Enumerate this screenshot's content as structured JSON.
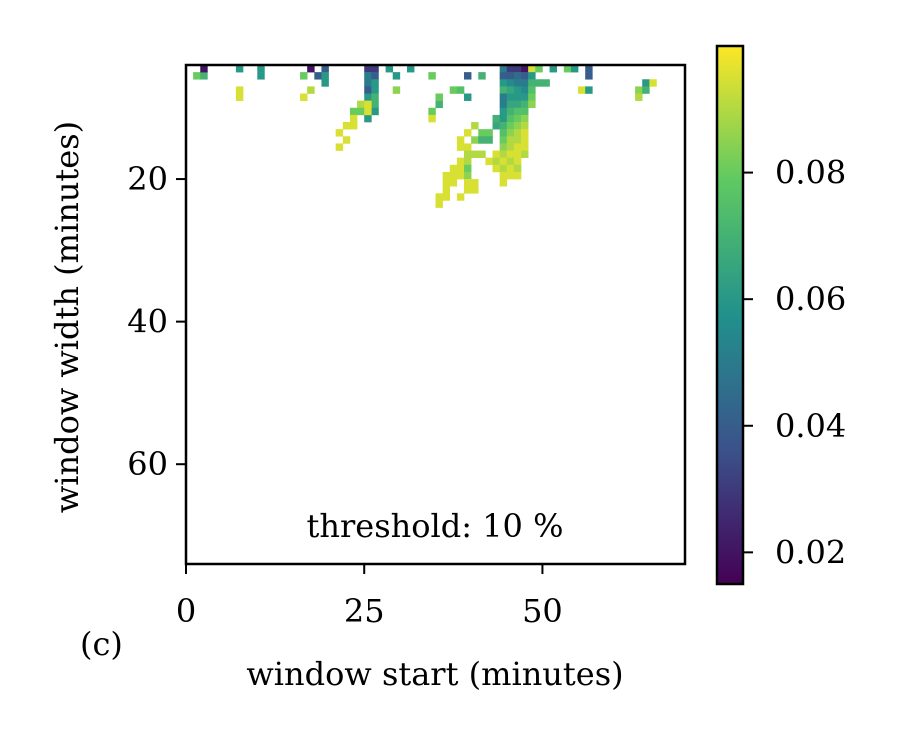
{
  "chart_data": {
    "type": "heatmap",
    "panel_label": "(c)",
    "xlabel": "window start (minutes)",
    "ylabel": "window width (minutes)",
    "annotation": "threshold: 10 %",
    "xlim": [
      0,
      70
    ],
    "ylim": [
      74,
      4
    ],
    "xticks": [
      0,
      25,
      50
    ],
    "yticks": [
      20,
      40,
      60
    ],
    "colorbar": {
      "colormap": "viridis",
      "range": [
        0.015,
        0.1
      ],
      "ticks": [
        "0.02",
        "0.04",
        "0.06",
        "0.08"
      ],
      "tick_values": [
        0.02,
        0.04,
        0.06,
        0.08
      ]
    },
    "colors": {
      "viridis": [
        "#440154",
        "#3b528b",
        "#21918c",
        "#5ec962",
        "#fde725"
      ]
    },
    "cells": [
      [
        1,
        5,
        0.08
      ],
      [
        2,
        5,
        0.07
      ],
      [
        2,
        4,
        0.02
      ],
      [
        7,
        4,
        0.06
      ],
      [
        10,
        4,
        0.06
      ],
      [
        10,
        5,
        0.06
      ],
      [
        7,
        7,
        0.095
      ],
      [
        7,
        8,
        0.095
      ],
      [
        16,
        5,
        0.08
      ],
      [
        17,
        4,
        0.02
      ],
      [
        18,
        5,
        0.04
      ],
      [
        19,
        4,
        0.04
      ],
      [
        17,
        7,
        0.09
      ],
      [
        16,
        8,
        0.095
      ],
      [
        19,
        6,
        0.06
      ],
      [
        19,
        5,
        0.06
      ],
      [
        22,
        12,
        0.095
      ],
      [
        21,
        13,
        0.095
      ],
      [
        21,
        15,
        0.095
      ],
      [
        22,
        14,
        0.095
      ],
      [
        23,
        10,
        0.08
      ],
      [
        23,
        11,
        0.095
      ],
      [
        23,
        12,
        0.095
      ],
      [
        24,
        9,
        0.09
      ],
      [
        24,
        10,
        0.08
      ],
      [
        25,
        4,
        0.03
      ],
      [
        25,
        5,
        0.05
      ],
      [
        25,
        6,
        0.05
      ],
      [
        25,
        7,
        0.04
      ],
      [
        25,
        8,
        0.06
      ],
      [
        25,
        11,
        0.06
      ],
      [
        26,
        4,
        0.03
      ],
      [
        26,
        5,
        0.04
      ],
      [
        26,
        6,
        0.06
      ],
      [
        26,
        7,
        0.06
      ],
      [
        26,
        8,
        0.07
      ],
      [
        26,
        9,
        0.07
      ],
      [
        26,
        10,
        0.06
      ],
      [
        25,
        9,
        0.095
      ],
      [
        25,
        10,
        0.095
      ],
      [
        28,
        4,
        0.06
      ],
      [
        29,
        5,
        0.06
      ],
      [
        29,
        7,
        0.085
      ],
      [
        31,
        4,
        0.06
      ],
      [
        34,
        5,
        0.08
      ],
      [
        34,
        10,
        0.08
      ],
      [
        34,
        11,
        0.095
      ],
      [
        35,
        9,
        0.07
      ],
      [
        35,
        8,
        0.08
      ],
      [
        37,
        7,
        0.08
      ],
      [
        38,
        7,
        0.075
      ],
      [
        39,
        5,
        0.04
      ],
      [
        39,
        8,
        0.06
      ],
      [
        41,
        5,
        0.07
      ],
      [
        39,
        13,
        0.095
      ],
      [
        40,
        12,
        0.09
      ],
      [
        40,
        14,
        0.085
      ],
      [
        41,
        13,
        0.08
      ],
      [
        41,
        14,
        0.07
      ],
      [
        42,
        13,
        0.08
      ],
      [
        42,
        14,
        0.07
      ],
      [
        43,
        12,
        0.065
      ],
      [
        43,
        11,
        0.07
      ],
      [
        38,
        14,
        0.095
      ],
      [
        38,
        15,
        0.095
      ],
      [
        39,
        15,
        0.095
      ],
      [
        40,
        16,
        0.09
      ],
      [
        41,
        16,
        0.09
      ],
      [
        39,
        16,
        0.09
      ],
      [
        38,
        17,
        0.095
      ],
      [
        39,
        17,
        0.09
      ],
      [
        37,
        18,
        0.095
      ],
      [
        38,
        18,
        0.095
      ],
      [
        39,
        18,
        0.08
      ],
      [
        36,
        19,
        0.095
      ],
      [
        37,
        19,
        0.095
      ],
      [
        38,
        19,
        0.095
      ],
      [
        39,
        19,
        0.085
      ],
      [
        36,
        20,
        0.095
      ],
      [
        37,
        20,
        0.095
      ],
      [
        39,
        20,
        0.095
      ],
      [
        40,
        20,
        0.095
      ],
      [
        36,
        21,
        0.095
      ],
      [
        39,
        21,
        0.095
      ],
      [
        40,
        21,
        0.095
      ],
      [
        35,
        22,
        0.095
      ],
      [
        36,
        22,
        0.095
      ],
      [
        38,
        22,
        0.095
      ],
      [
        35,
        23,
        0.095
      ],
      [
        42,
        17,
        0.095
      ],
      [
        43,
        16,
        0.095
      ],
      [
        43,
        17,
        0.09
      ],
      [
        43,
        18,
        0.095
      ],
      [
        44,
        4,
        0.05
      ],
      [
        44,
        5,
        0.04
      ],
      [
        44,
        6,
        0.06
      ],
      [
        44,
        7,
        0.07
      ],
      [
        44,
        8,
        0.05
      ],
      [
        44,
        9,
        0.05
      ],
      [
        44,
        10,
        0.06
      ],
      [
        44,
        11,
        0.06
      ],
      [
        44,
        12,
        0.07
      ],
      [
        44,
        13,
        0.075
      ],
      [
        44,
        14,
        0.08
      ],
      [
        44,
        15,
        0.085
      ],
      [
        44,
        16,
        0.09
      ],
      [
        44,
        17,
        0.095
      ],
      [
        44,
        18,
        0.09
      ],
      [
        44,
        19,
        0.095
      ],
      [
        44,
        20,
        0.095
      ],
      [
        45,
        4,
        0.03
      ],
      [
        45,
        5,
        0.04
      ],
      [
        45,
        6,
        0.055
      ],
      [
        45,
        7,
        0.065
      ],
      [
        45,
        8,
        0.06
      ],
      [
        45,
        9,
        0.065
      ],
      [
        45,
        10,
        0.07
      ],
      [
        45,
        11,
        0.075
      ],
      [
        45,
        12,
        0.08
      ],
      [
        45,
        13,
        0.085
      ],
      [
        45,
        14,
        0.09
      ],
      [
        45,
        15,
        0.09
      ],
      [
        45,
        16,
        0.095
      ],
      [
        45,
        17,
        0.09
      ],
      [
        45,
        18,
        0.095
      ],
      [
        45,
        19,
        0.095
      ],
      [
        46,
        4,
        0.03
      ],
      [
        46,
        5,
        0.045
      ],
      [
        46,
        6,
        0.05
      ],
      [
        46,
        7,
        0.06
      ],
      [
        46,
        8,
        0.06
      ],
      [
        46,
        9,
        0.065
      ],
      [
        46,
        10,
        0.075
      ],
      [
        46,
        11,
        0.08
      ],
      [
        46,
        12,
        0.085
      ],
      [
        46,
        13,
        0.09
      ],
      [
        46,
        14,
        0.09
      ],
      [
        46,
        15,
        0.095
      ],
      [
        46,
        16,
        0.095
      ],
      [
        46,
        17,
        0.095
      ],
      [
        46,
        18,
        0.09
      ],
      [
        46,
        19,
        0.095
      ],
      [
        47,
        4,
        0.02
      ],
      [
        47,
        5,
        0.04
      ],
      [
        47,
        6,
        0.05
      ],
      [
        47,
        7,
        0.055
      ],
      [
        47,
        8,
        0.06
      ],
      [
        47,
        9,
        0.07
      ],
      [
        47,
        10,
        0.075
      ],
      [
        47,
        11,
        0.085
      ],
      [
        47,
        12,
        0.09
      ],
      [
        47,
        13,
        0.095
      ],
      [
        47,
        14,
        0.095
      ],
      [
        47,
        15,
        0.095
      ],
      [
        47,
        16,
        0.09
      ],
      [
        48,
        4,
        0.095
      ],
      [
        48,
        5,
        0.06
      ],
      [
        48,
        6,
        0.07
      ],
      [
        48,
        7,
        0.075
      ],
      [
        48,
        8,
        0.08
      ],
      [
        48,
        9,
        0.085
      ],
      [
        49,
        4,
        0.08
      ],
      [
        49,
        6,
        0.07
      ],
      [
        50,
        6,
        0.07
      ],
      [
        51,
        4,
        0.06
      ],
      [
        53,
        4,
        0.08
      ],
      [
        54,
        4,
        0.06
      ],
      [
        55,
        7,
        0.095
      ],
      [
        56,
        4,
        0.04
      ],
      [
        56,
        5,
        0.04
      ],
      [
        56,
        7,
        0.06
      ],
      [
        63,
        7,
        0.085
      ],
      [
        63,
        8,
        0.09
      ],
      [
        64,
        6,
        0.06
      ],
      [
        64,
        7,
        0.07
      ],
      [
        65,
        6,
        0.095
      ]
    ]
  }
}
